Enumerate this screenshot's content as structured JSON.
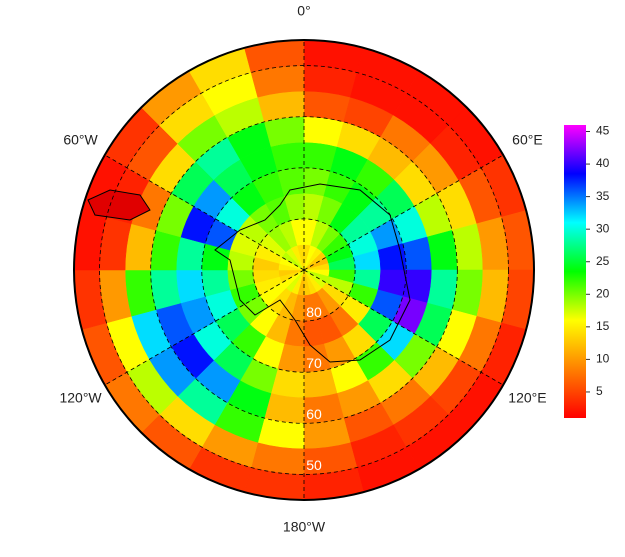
{
  "chart_data": {
    "type": "polar-heatmap",
    "lat_lim": [
      -90,
      -45
    ],
    "lat_edges": [
      -90,
      -85,
      -80,
      -75,
      -70,
      -65,
      -60,
      -55,
      -50,
      -45
    ],
    "lon_edges": [
      0,
      15,
      30,
      45,
      60,
      75,
      90,
      105,
      120,
      135,
      150,
      165,
      180,
      195,
      210,
      225,
      240,
      255,
      270,
      285,
      300,
      315,
      330,
      345,
      360
    ],
    "values": [
      [
        14,
        16,
        15,
        13,
        12,
        14,
        16,
        18,
        17,
        15,
        14,
        13,
        12,
        15,
        17,
        16,
        14,
        13,
        15,
        16,
        18,
        17,
        15,
        14
      ],
      [
        16,
        18,
        20,
        22,
        24,
        26,
        22,
        18,
        14,
        10,
        8,
        8,
        10,
        12,
        14,
        16,
        15,
        14,
        13,
        15,
        17,
        19,
        18,
        16
      ],
      [
        18,
        20,
        24,
        28,
        30,
        32,
        28,
        22,
        15,
        8,
        6,
        6,
        8,
        12,
        16,
        20,
        22,
        20,
        18,
        17,
        18,
        20,
        21,
        19
      ],
      [
        20,
        22,
        24,
        28,
        34,
        38,
        40,
        36,
        26,
        14,
        10,
        8,
        10,
        16,
        22,
        26,
        30,
        28,
        24,
        36,
        30,
        24,
        22,
        21
      ],
      [
        22,
        24,
        22,
        26,
        30,
        36,
        40,
        42,
        32,
        22,
        16,
        12,
        14,
        20,
        26,
        30,
        34,
        32,
        28,
        38,
        34,
        26,
        24,
        22
      ],
      [
        16,
        14,
        12,
        14,
        18,
        24,
        28,
        26,
        20,
        14,
        10,
        8,
        12,
        24,
        34,
        38,
        36,
        28,
        22,
        20,
        26,
        28,
        24,
        20
      ],
      [
        6,
        5,
        8,
        10,
        14,
        18,
        20,
        16,
        12,
        8,
        6,
        10,
        16,
        22,
        28,
        34,
        32,
        22,
        12,
        8,
        14,
        20,
        18,
        12
      ],
      [
        3,
        2,
        2,
        3,
        6,
        10,
        12,
        8,
        5,
        4,
        3,
        6,
        8,
        10,
        14,
        18,
        16,
        10,
        4,
        3,
        6,
        14,
        16,
        8
      ],
      [
        2,
        2,
        2,
        2,
        4,
        6,
        5,
        3,
        2,
        2,
        2,
        3,
        4,
        4,
        6,
        8,
        6,
        4,
        2,
        2,
        4,
        10,
        14,
        6
      ]
    ],
    "lon_ticks": [
      {
        "value": 0,
        "label": "0°"
      },
      {
        "value": 60,
        "label": "60°E"
      },
      {
        "value": 120,
        "label": "120°E"
      },
      {
        "value": 180,
        "label": "180°W"
      },
      {
        "value": 240,
        "label": "120°W"
      },
      {
        "value": 300,
        "label": "60°W"
      }
    ],
    "lat_ticks": [
      {
        "value": -80,
        "label": "80"
      },
      {
        "value": -70,
        "label": "70"
      },
      {
        "value": -60,
        "label": "60"
      },
      {
        "value": -50,
        "label": "50"
      }
    ],
    "zlim": [
      1,
      46
    ],
    "zticks": [
      5,
      10,
      15,
      20,
      25,
      30,
      35,
      40,
      45
    ],
    "colorscale": [
      "#ff0000",
      "#ff8000",
      "#ffff00",
      "#00ff00",
      "#00ffff",
      "#0000ff",
      "#ff00ff"
    ],
    "grid": true
  }
}
